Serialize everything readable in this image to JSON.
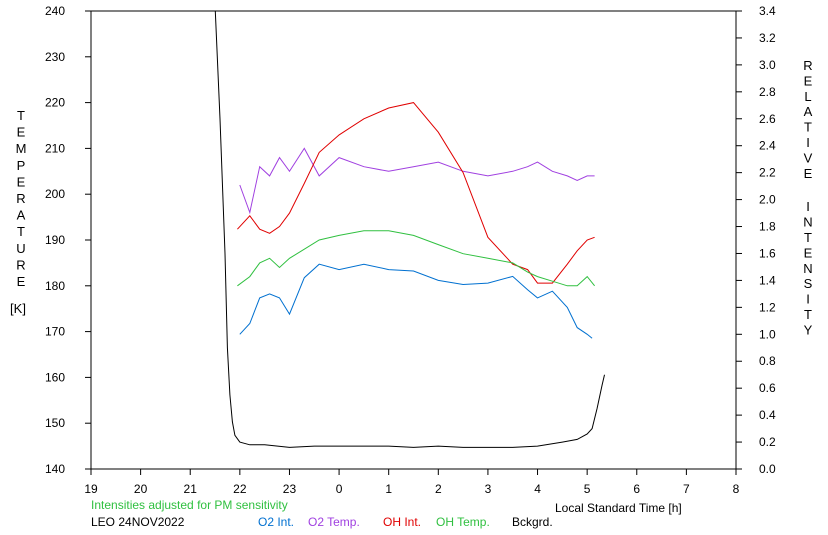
{
  "chart_data": {
    "type": "line",
    "left_axis": {
      "label_letters": [
        "T",
        "E",
        "M",
        "P",
        "E",
        "R",
        "A",
        "T",
        "U",
        "R",
        "E"
      ],
      "unit": "[K]",
      "ylim": [
        140,
        240
      ],
      "ticks": [
        "140",
        "150",
        "160",
        "170",
        "180",
        "190",
        "200",
        "210",
        "220",
        "230",
        "240"
      ]
    },
    "right_axis": {
      "label_word1": [
        "R",
        "E",
        "L",
        "A",
        "T",
        "I",
        "V",
        "E"
      ],
      "label_word2": [
        "I",
        "N",
        "T",
        "E",
        "N",
        "S",
        "I",
        "T",
        "Y"
      ],
      "ylim": [
        0.0,
        3.4
      ],
      "ticks": [
        "0.0",
        "0.2",
        "0.4",
        "0.6",
        "0.8",
        "1.0",
        "1.2",
        "1.4",
        "1.6",
        "1.8",
        "2.0",
        "2.2",
        "2.4",
        "2.6",
        "2.8",
        "3.0",
        "3.2",
        "3.4"
      ]
    },
    "x_axis": {
      "xlim": [
        19,
        32
      ],
      "tick_labels": [
        "19",
        "20",
        "21",
        "22",
        "23",
        "0",
        "1",
        "2",
        "3",
        "4",
        "5",
        "6",
        "7",
        "8"
      ],
      "xlabel": "Local Standard Time [h]"
    },
    "note": "Intensities adjusted for PM sensitivity",
    "station": "LEO 24NOV2022",
    "grid": false,
    "legend_position": "bottom",
    "series": [
      {
        "name": "O2 Int.",
        "color": "#0070d0",
        "axis": "right",
        "x": [
          22.0,
          22.2,
          22.4,
          22.6,
          22.8,
          23.0,
          23.3,
          23.6,
          24.0,
          24.5,
          25.0,
          25.5,
          26.0,
          26.5,
          27.0,
          27.5,
          27.8,
          28.0,
          28.3,
          28.6,
          28.8,
          29.0,
          29.1
        ],
        "y": [
          1.0,
          1.08,
          1.27,
          1.3,
          1.27,
          1.15,
          1.42,
          1.52,
          1.48,
          1.52,
          1.48,
          1.47,
          1.4,
          1.37,
          1.38,
          1.43,
          1.33,
          1.27,
          1.32,
          1.2,
          1.05,
          1.0,
          0.97
        ]
      },
      {
        "name": "O2 Temp.",
        "color": "#a040e0",
        "axis": "left",
        "x": [
          22.0,
          22.2,
          22.4,
          22.6,
          22.8,
          23.0,
          23.3,
          23.6,
          24.0,
          24.5,
          25.0,
          25.5,
          26.0,
          26.5,
          27.0,
          27.5,
          27.8,
          28.0,
          28.3,
          28.6,
          28.8,
          29.0,
          29.15
        ],
        "y": [
          202,
          196,
          206,
          204,
          208,
          205,
          210,
          204,
          208,
          206,
          205,
          206,
          207,
          205,
          204,
          205,
          206,
          207,
          205,
          204,
          203,
          204,
          204
        ]
      },
      {
        "name": "OH Int.",
        "color": "#e00000",
        "axis": "right",
        "x": [
          21.95,
          22.2,
          22.4,
          22.6,
          22.8,
          23.0,
          23.3,
          23.6,
          24.0,
          24.5,
          25.0,
          25.5,
          26.0,
          26.5,
          27.0,
          27.5,
          27.8,
          28.0,
          28.3,
          28.6,
          28.8,
          29.0,
          29.15
        ],
        "y": [
          1.78,
          1.88,
          1.78,
          1.75,
          1.8,
          1.9,
          2.12,
          2.35,
          2.48,
          2.6,
          2.68,
          2.72,
          2.5,
          2.2,
          1.72,
          1.52,
          1.48,
          1.38,
          1.38,
          1.52,
          1.62,
          1.7,
          1.72
        ]
      },
      {
        "name": "OH Temp.",
        "color": "#30c040",
        "axis": "left",
        "x": [
          21.95,
          22.2,
          22.4,
          22.6,
          22.8,
          23.0,
          23.3,
          23.6,
          24.0,
          24.5,
          25.0,
          25.5,
          26.0,
          26.5,
          27.0,
          27.5,
          27.8,
          28.0,
          28.3,
          28.6,
          28.8,
          29.0,
          29.15
        ],
        "y": [
          180,
          182,
          185,
          186,
          184,
          186,
          188,
          190,
          191,
          192,
          192,
          191,
          189,
          187,
          186,
          185,
          183,
          182,
          181,
          180,
          180,
          182,
          180
        ]
      },
      {
        "name": "Bckgrd.",
        "color": "#000000",
        "axis": "right",
        "x": [
          21.5,
          21.6,
          21.7,
          21.75,
          21.8,
          21.85,
          21.9,
          22.0,
          22.2,
          22.5,
          23.0,
          23.5,
          24.0,
          24.5,
          25.0,
          25.5,
          26.0,
          26.5,
          27.0,
          27.5,
          28.0,
          28.5,
          28.8,
          29.0,
          29.1,
          29.2,
          29.3,
          29.35
        ],
        "y": [
          3.45,
          2.6,
          1.6,
          0.9,
          0.55,
          0.35,
          0.25,
          0.2,
          0.18,
          0.18,
          0.16,
          0.17,
          0.17,
          0.17,
          0.17,
          0.16,
          0.17,
          0.16,
          0.16,
          0.16,
          0.17,
          0.2,
          0.22,
          0.26,
          0.3,
          0.45,
          0.62,
          0.7
        ]
      }
    ]
  }
}
